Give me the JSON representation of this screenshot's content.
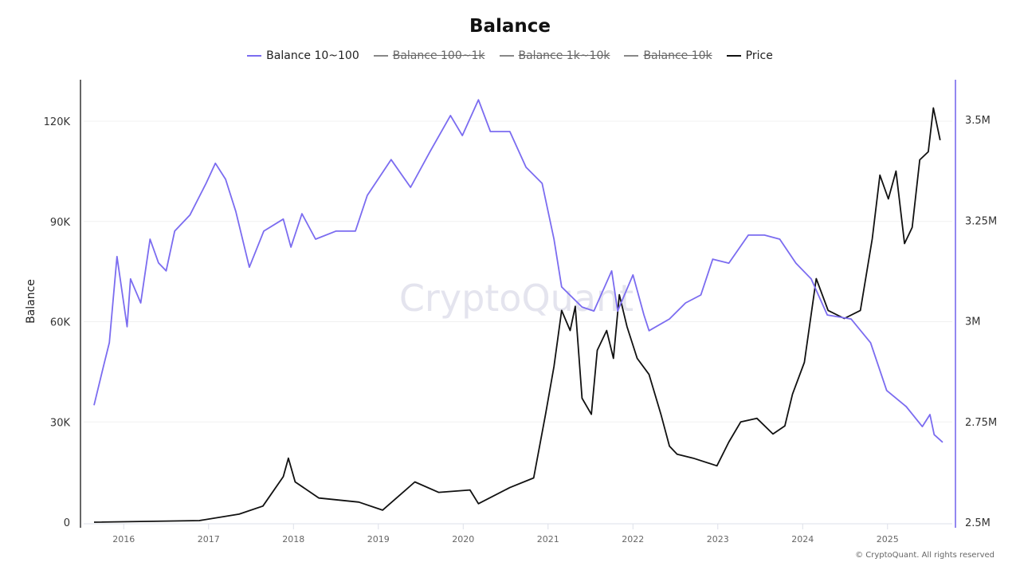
{
  "title": "Balance",
  "legend": [
    {
      "label": "Balance 10~100",
      "color": "#7b6cf0",
      "enabled": true
    },
    {
      "label": "Balance 100~1k",
      "color": "#888888",
      "enabled": false
    },
    {
      "label": "Balance 1k~10k",
      "color": "#888888",
      "enabled": false
    },
    {
      "label": "Balance 10k",
      "color": "#888888",
      "enabled": false
    },
    {
      "label": "Price",
      "color": "#111111",
      "enabled": true
    }
  ],
  "watermark": "CryptoQuant",
  "copyright": "© CryptoQuant. All rights reserved",
  "colors": {
    "balance": "#7b6cf0",
    "price": "#111111",
    "grid": "#f0f0f0",
    "right_axis": "#9388f0"
  },
  "chart_data": {
    "type": "line",
    "title": "Balance",
    "xlabel": "",
    "ylabel": "Balance",
    "y_ticks": [
      "0",
      "30K",
      "60K",
      "90K",
      "120K"
    ],
    "y_tick_values": [
      0,
      30000,
      60000,
      90000,
      120000
    ],
    "y2_ticks": [
      "2.5M",
      "2.75M",
      "3M",
      "3.25M",
      "3.5M"
    ],
    "y2_tick_values": [
      2500000,
      2750000,
      3000000,
      3250000,
      3500000
    ],
    "x_ticks": [
      "2016",
      "2017",
      "2018",
      "2019",
      "2020",
      "2021",
      "2022",
      "2023",
      "2024",
      "2025"
    ],
    "xlim": [
      2015.65,
      2025.65
    ],
    "ylim": [
      0,
      120000
    ],
    "y2lim": [
      2500000,
      3500000
    ],
    "grid": true,
    "legend_position": "top",
    "series": [
      {
        "name": "Balance 10~100",
        "axis": "left",
        "x": [
          2015.65,
          2015.76,
          2015.83,
          2015.92,
          2016.04,
          2016.08,
          2016.2,
          2016.31,
          2016.41,
          2016.5,
          2016.6,
          2016.78,
          2016.97,
          2017.08,
          2017.2,
          2017.32,
          2017.48,
          2017.65,
          2017.88,
          2017.97,
          2018.1,
          2018.26,
          2018.5,
          2018.73,
          2018.87,
          2019.15,
          2019.38,
          2019.61,
          2019.85,
          2019.99,
          2020.18,
          2020.32,
          2020.55,
          2020.74,
          2020.93,
          2021.07,
          2021.16,
          2021.4,
          2021.54,
          2021.75,
          2021.82,
          2022.0,
          2022.13,
          2022.19,
          2022.43,
          2022.62,
          2022.8,
          2022.94,
          2023.13,
          2023.36,
          2023.55,
          2023.73,
          2023.92,
          2024.1,
          2024.29,
          2024.57,
          2024.8,
          2024.99,
          2025.22,
          2025.41,
          2025.5,
          2025.55,
          2025.65
        ],
        "values": [
          35000,
          46500,
          53700,
          79500,
          58500,
          72800,
          65600,
          84700,
          77600,
          75200,
          87100,
          91900,
          101400,
          107400,
          102600,
          93000,
          76300,
          87100,
          90700,
          82300,
          92300,
          84700,
          87100,
          87100,
          97800,
          108500,
          100200,
          110900,
          121700,
          115700,
          126400,
          116900,
          116900,
          106200,
          101400,
          84700,
          70400,
          64400,
          63200,
          75200,
          63200,
          74000,
          62000,
          57300,
          60800,
          65600,
          68000,
          78700,
          77500,
          85900,
          85900,
          84700,
          77500,
          72800,
          62000,
          60800,
          53700,
          39400,
          34600,
          28600,
          32200,
          26200,
          23900
        ]
      },
      {
        "name": "Price",
        "axis": "right",
        "x": [
          2015.65,
          2016.89,
          2017.36,
          2017.64,
          2017.88,
          2017.94,
          2018.02,
          2018.3,
          2018.77,
          2019.05,
          2019.43,
          2019.71,
          2020.08,
          2020.18,
          2020.55,
          2020.83,
          2020.97,
          2021.07,
          2021.16,
          2021.26,
          2021.32,
          2021.4,
          2021.51,
          2021.58,
          2021.69,
          2021.77,
          2021.84,
          2021.93,
          2022.05,
          2022.19,
          2022.33,
          2022.43,
          2022.52,
          2022.71,
          2022.99,
          2023.13,
          2023.27,
          2023.46,
          2023.65,
          2023.79,
          2023.88,
          2024.02,
          2024.16,
          2024.3,
          2024.49,
          2024.68,
          2024.82,
          2024.91,
          2025.01,
          2025.1,
          2025.2,
          2025.29,
          2025.38,
          2025.48,
          2025.54,
          2025.62
        ],
        "values": [
          2500000,
          2504000,
          2520000,
          2540000,
          2613000,
          2659000,
          2600000,
          2560000,
          2550000,
          2530000,
          2600000,
          2574000,
          2580000,
          2546000,
          2586000,
          2610000,
          2768000,
          2887000,
          3026000,
          2976000,
          3036000,
          2808000,
          2768000,
          2927000,
          2976000,
          2907000,
          3065000,
          2986000,
          2907000,
          2867000,
          2768000,
          2689000,
          2669000,
          2659000,
          2640000,
          2699000,
          2749000,
          2758000,
          2719000,
          2739000,
          2818000,
          2897000,
          3105000,
          3026000,
          3006000,
          3026000,
          3204000,
          3362000,
          3303000,
          3372000,
          3192000,
          3232000,
          3400000,
          3420000,
          3529000,
          3449000
        ]
      }
    ]
  }
}
